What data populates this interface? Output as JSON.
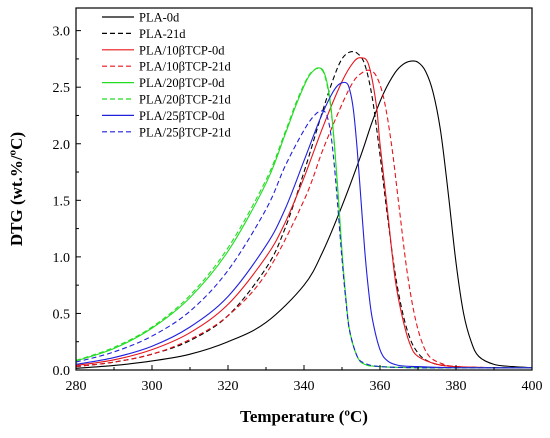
{
  "chart_data": {
    "type": "line",
    "title": "",
    "xlabel": "Temperature (ºC)",
    "ylabel": "DTG (wt.%/ºC)",
    "xlim": [
      280,
      400
    ],
    "ylim": [
      0.0,
      3.2
    ],
    "xticks": [
      280,
      300,
      320,
      340,
      360,
      380,
      400
    ],
    "yticks": [
      "0.0",
      "0.5",
      "1.0",
      "1.5",
      "2.0",
      "2.5",
      "3.0"
    ],
    "grid": false,
    "legend_position": "top-left",
    "series": [
      {
        "name": "PLA-0d",
        "color": "#000000",
        "dash": "solid",
        "x": [
          280,
          290,
          300,
          310,
          320,
          330,
          340,
          345,
          350,
          355,
          358,
          361,
          364,
          366,
          368,
          370,
          372,
          374,
          376,
          378,
          380,
          382,
          384,
          386,
          390,
          395,
          400
        ],
        "y": [
          0.015,
          0.04,
          0.08,
          0.14,
          0.25,
          0.42,
          0.75,
          1.05,
          1.45,
          1.9,
          2.2,
          2.45,
          2.63,
          2.7,
          2.73,
          2.72,
          2.64,
          2.45,
          2.1,
          1.55,
          0.95,
          0.5,
          0.25,
          0.12,
          0.05,
          0.03,
          0.02
        ]
      },
      {
        "name": "PLA-21d",
        "color": "#000000",
        "dash": "dashed",
        "x": [
          280,
          290,
          300,
          310,
          320,
          330,
          335,
          340,
          345,
          348,
          350,
          352,
          354,
          356,
          358,
          360,
          362,
          364,
          366,
          368,
          370,
          372,
          375,
          380,
          390,
          400
        ],
        "y": [
          0.03,
          0.07,
          0.14,
          0.26,
          0.48,
          0.9,
          1.25,
          1.75,
          2.3,
          2.6,
          2.75,
          2.81,
          2.8,
          2.7,
          2.4,
          1.9,
          1.35,
          0.85,
          0.5,
          0.27,
          0.15,
          0.09,
          0.05,
          0.03,
          0.02,
          0.02
        ]
      },
      {
        "name": "PLA/10βTCP-0d",
        "color": "#e8141c",
        "dash": "solid",
        "x": [
          280,
          290,
          300,
          310,
          320,
          330,
          335,
          340,
          345,
          350,
          353,
          355,
          357,
          359,
          360,
          362,
          364,
          366,
          368,
          370,
          375,
          380,
          390,
          400
        ],
        "y": [
          0.04,
          0.09,
          0.18,
          0.33,
          0.58,
          1.0,
          1.3,
          1.7,
          2.15,
          2.55,
          2.72,
          2.76,
          2.7,
          2.35,
          2.0,
          1.4,
          0.8,
          0.45,
          0.22,
          0.12,
          0.05,
          0.03,
          0.02,
          0.02
        ]
      },
      {
        "name": "PLA/10βTCP-21d",
        "color": "#e8141c",
        "dash": "dashed",
        "x": [
          280,
          290,
          300,
          310,
          320,
          330,
          340,
          345,
          350,
          353,
          355,
          357,
          359,
          361,
          363,
          365,
          367,
          369,
          371,
          373,
          376,
          380,
          390,
          400
        ],
        "y": [
          0.03,
          0.07,
          0.14,
          0.27,
          0.48,
          0.85,
          1.5,
          1.95,
          2.35,
          2.55,
          2.62,
          2.65,
          2.6,
          2.4,
          2.0,
          1.45,
          0.9,
          0.5,
          0.25,
          0.12,
          0.06,
          0.03,
          0.02,
          0.02
        ]
      },
      {
        "name": "PLA/20βTCP-0d",
        "color": "#22dd22",
        "dash": "solid",
        "x": [
          280,
          290,
          300,
          310,
          320,
          330,
          335,
          338,
          341,
          343,
          344,
          345,
          346,
          347,
          348,
          349,
          350,
          351,
          352,
          354,
          356,
          360,
          370,
          380,
          400
        ],
        "y": [
          0.08,
          0.19,
          0.37,
          0.64,
          1.05,
          1.65,
          2.08,
          2.35,
          2.58,
          2.66,
          2.67,
          2.65,
          2.55,
          2.35,
          2.0,
          1.55,
          1.05,
          0.65,
          0.35,
          0.12,
          0.05,
          0.03,
          0.02,
          0.02,
          0.02
        ]
      },
      {
        "name": "PLA/20βTCP-21d",
        "color": "#22dd22",
        "dash": "dashed",
        "x": [
          280,
          290,
          300,
          310,
          320,
          330,
          335,
          338,
          341,
          343,
          344,
          345,
          346,
          347,
          348,
          349,
          350,
          351,
          352,
          354,
          356,
          360,
          370,
          380,
          400
        ],
        "y": [
          0.085,
          0.2,
          0.38,
          0.66,
          1.08,
          1.68,
          2.1,
          2.37,
          2.59,
          2.66,
          2.66,
          2.64,
          2.53,
          2.33,
          1.98,
          1.52,
          1.02,
          0.63,
          0.34,
          0.12,
          0.05,
          0.03,
          0.02,
          0.02,
          0.02
        ]
      },
      {
        "name": "PLA/25βTCP-0d",
        "color": "#2020dd",
        "dash": "solid",
        "x": [
          280,
          290,
          300,
          310,
          320,
          330,
          335,
          340,
          344,
          347,
          349,
          351,
          352,
          353,
          354,
          355,
          356,
          357,
          358,
          360,
          362,
          365,
          370,
          380,
          400
        ],
        "y": [
          0.05,
          0.11,
          0.21,
          0.38,
          0.65,
          1.1,
          1.42,
          1.85,
          2.2,
          2.42,
          2.52,
          2.54,
          2.48,
          2.3,
          1.95,
          1.5,
          1.05,
          0.7,
          0.45,
          0.18,
          0.08,
          0.04,
          0.03,
          0.02,
          0.02
        ]
      },
      {
        "name": "PLA/25βTCP-21d",
        "color": "#2020dd",
        "dash": "dashed",
        "x": [
          280,
          290,
          300,
          310,
          320,
          330,
          335,
          340,
          343,
          345,
          346,
          347,
          348,
          349,
          350,
          351,
          352,
          354,
          356,
          360,
          370,
          380,
          400
        ],
        "y": [
          0.07,
          0.16,
          0.3,
          0.52,
          0.88,
          1.42,
          1.8,
          2.12,
          2.26,
          2.29,
          2.25,
          2.1,
          1.8,
          1.4,
          0.98,
          0.62,
          0.35,
          0.12,
          0.06,
          0.03,
          0.02,
          0.02,
          0.02
        ]
      }
    ]
  }
}
